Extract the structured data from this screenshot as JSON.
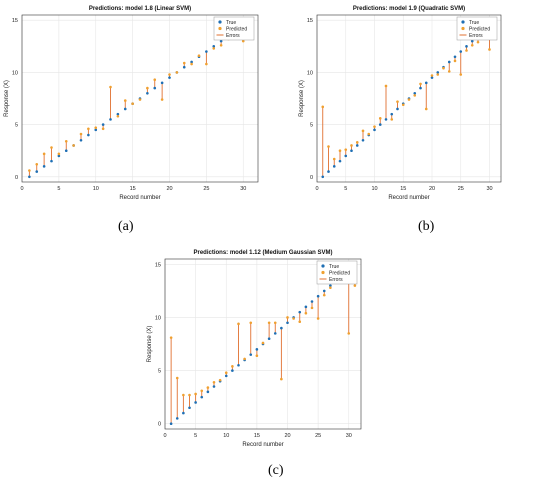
{
  "captions": [
    "(a)",
    "(b)",
    "(c)"
  ],
  "colors": {
    "true": "#1f6fb4",
    "predicted": "#f0a030",
    "errors": "#e07030"
  },
  "chart_data": [
    {
      "type": "scatter",
      "title": "Predictions: model 1.8 (Linear SVM)",
      "xlabel": "Record number",
      "ylabel": "Response (X)",
      "xlim": [
        0,
        32
      ],
      "ylim": [
        -0.5,
        15.5
      ],
      "xticks": [
        0,
        5,
        10,
        15,
        20,
        25,
        30
      ],
      "yticks": [
        0,
        5,
        10,
        15
      ],
      "grid": true,
      "legend": {
        "position": "top-right",
        "entries": [
          "True",
          "Predicted",
          "Errors"
        ]
      },
      "x": [
        1,
        2,
        3,
        4,
        5,
        6,
        7,
        8,
        9,
        10,
        11,
        12,
        13,
        14,
        15,
        16,
        17,
        18,
        19,
        20,
        21,
        22,
        23,
        24,
        25,
        26,
        27,
        28,
        29,
        30,
        31
      ],
      "series": [
        {
          "name": "True",
          "values": [
            0,
            0.5,
            1,
            1.5,
            2,
            2.5,
            3,
            3.5,
            4,
            4.5,
            5,
            5.5,
            6,
            6.5,
            7,
            7.5,
            8,
            8.5,
            9,
            9.5,
            10,
            10.5,
            11,
            11.5,
            12,
            12.5,
            13,
            13.5,
            14,
            14.5,
            15
          ]
        },
        {
          "name": "Predicted",
          "values": [
            0.6,
            1.2,
            2.2,
            2.8,
            2.2,
            3.4,
            3.0,
            4.1,
            4.6,
            4.7,
            4.6,
            8.6,
            5.8,
            7.3,
            7.0,
            7.4,
            8.5,
            9.3,
            7.4,
            9.8,
            10.0,
            10.9,
            10.8,
            11.6,
            10.8,
            12.3,
            12.6,
            13.2,
            13.5,
            13.0,
            14.4
          ]
        }
      ]
    },
    {
      "type": "scatter",
      "title": "Predictions: model 1.9 (Quadratic SVM)",
      "xlabel": "Record number",
      "ylabel": "Response (X)",
      "xlim": [
        0,
        32
      ],
      "ylim": [
        -0.5,
        15.5
      ],
      "xticks": [
        0,
        5,
        10,
        15,
        20,
        25,
        30
      ],
      "yticks": [
        0,
        5,
        10,
        15
      ],
      "grid": true,
      "legend": {
        "position": "top-right",
        "entries": [
          "True",
          "Predicted",
          "Errors"
        ]
      },
      "x": [
        1,
        2,
        3,
        4,
        5,
        6,
        7,
        8,
        9,
        10,
        11,
        12,
        13,
        14,
        15,
        16,
        17,
        18,
        19,
        20,
        21,
        22,
        23,
        24,
        25,
        26,
        27,
        28,
        29,
        30,
        31
      ],
      "series": [
        {
          "name": "True",
          "values": [
            0,
            0.5,
            1,
            1.5,
            2,
            2.5,
            3,
            3.5,
            4,
            4.5,
            5,
            5.5,
            6,
            6.5,
            7,
            7.5,
            8,
            8.5,
            9,
            9.5,
            10,
            10.5,
            11,
            11.5,
            12,
            12.5,
            13,
            13.5,
            14,
            14.5,
            15
          ]
        },
        {
          "name": "Predicted",
          "values": [
            6.7,
            2.9,
            1.7,
            2.5,
            2.6,
            3.0,
            3.3,
            4.4,
            4.1,
            4.8,
            5.6,
            8.7,
            5.5,
            7.2,
            6.9,
            7.4,
            7.8,
            8.9,
            6.5,
            9.7,
            9.8,
            10.4,
            10.1,
            11.1,
            9.8,
            12.1,
            12.6,
            12.9,
            13.5,
            12.2,
            14.2
          ]
        }
      ]
    },
    {
      "type": "scatter",
      "title": "Predictions: model 1.12 (Medium Gaussian SVM)",
      "xlabel": "Record number",
      "ylabel": "Response (X)",
      "xlim": [
        0,
        32
      ],
      "ylim": [
        -0.5,
        15.5
      ],
      "xticks": [
        0,
        5,
        10,
        15,
        20,
        25,
        30
      ],
      "yticks": [
        0,
        5,
        10,
        15
      ],
      "grid": true,
      "legend": {
        "position": "top-right",
        "entries": [
          "True",
          "Predicted",
          "Errors"
        ]
      },
      "x": [
        1,
        2,
        3,
        4,
        5,
        6,
        7,
        8,
        9,
        10,
        11,
        12,
        13,
        14,
        15,
        16,
        17,
        18,
        19,
        20,
        21,
        22,
        23,
        24,
        25,
        26,
        27,
        28,
        29,
        30,
        31
      ],
      "series": [
        {
          "name": "True",
          "values": [
            0,
            0.5,
            1,
            1.5,
            2,
            2.5,
            3,
            3.5,
            4,
            4.5,
            5,
            5.5,
            6,
            6.5,
            7,
            7.5,
            8,
            8.5,
            9,
            9.5,
            10,
            10.5,
            11,
            11.5,
            12,
            12.5,
            13,
            13.5,
            14,
            14.5,
            15
          ]
        },
        {
          "name": "Predicted",
          "values": [
            8.1,
            4.3,
            2.7,
            2.7,
            2.8,
            3.1,
            3.4,
            3.9,
            4.1,
            4.8,
            5.4,
            9.4,
            6.1,
            9.5,
            6.4,
            7.6,
            9.5,
            9.5,
            4.2,
            10.0,
            9.9,
            9.6,
            10.4,
            10.9,
            9.9,
            12.1,
            12.8,
            13.3,
            13.9,
            8.5,
            13.0
          ]
        }
      ]
    }
  ]
}
